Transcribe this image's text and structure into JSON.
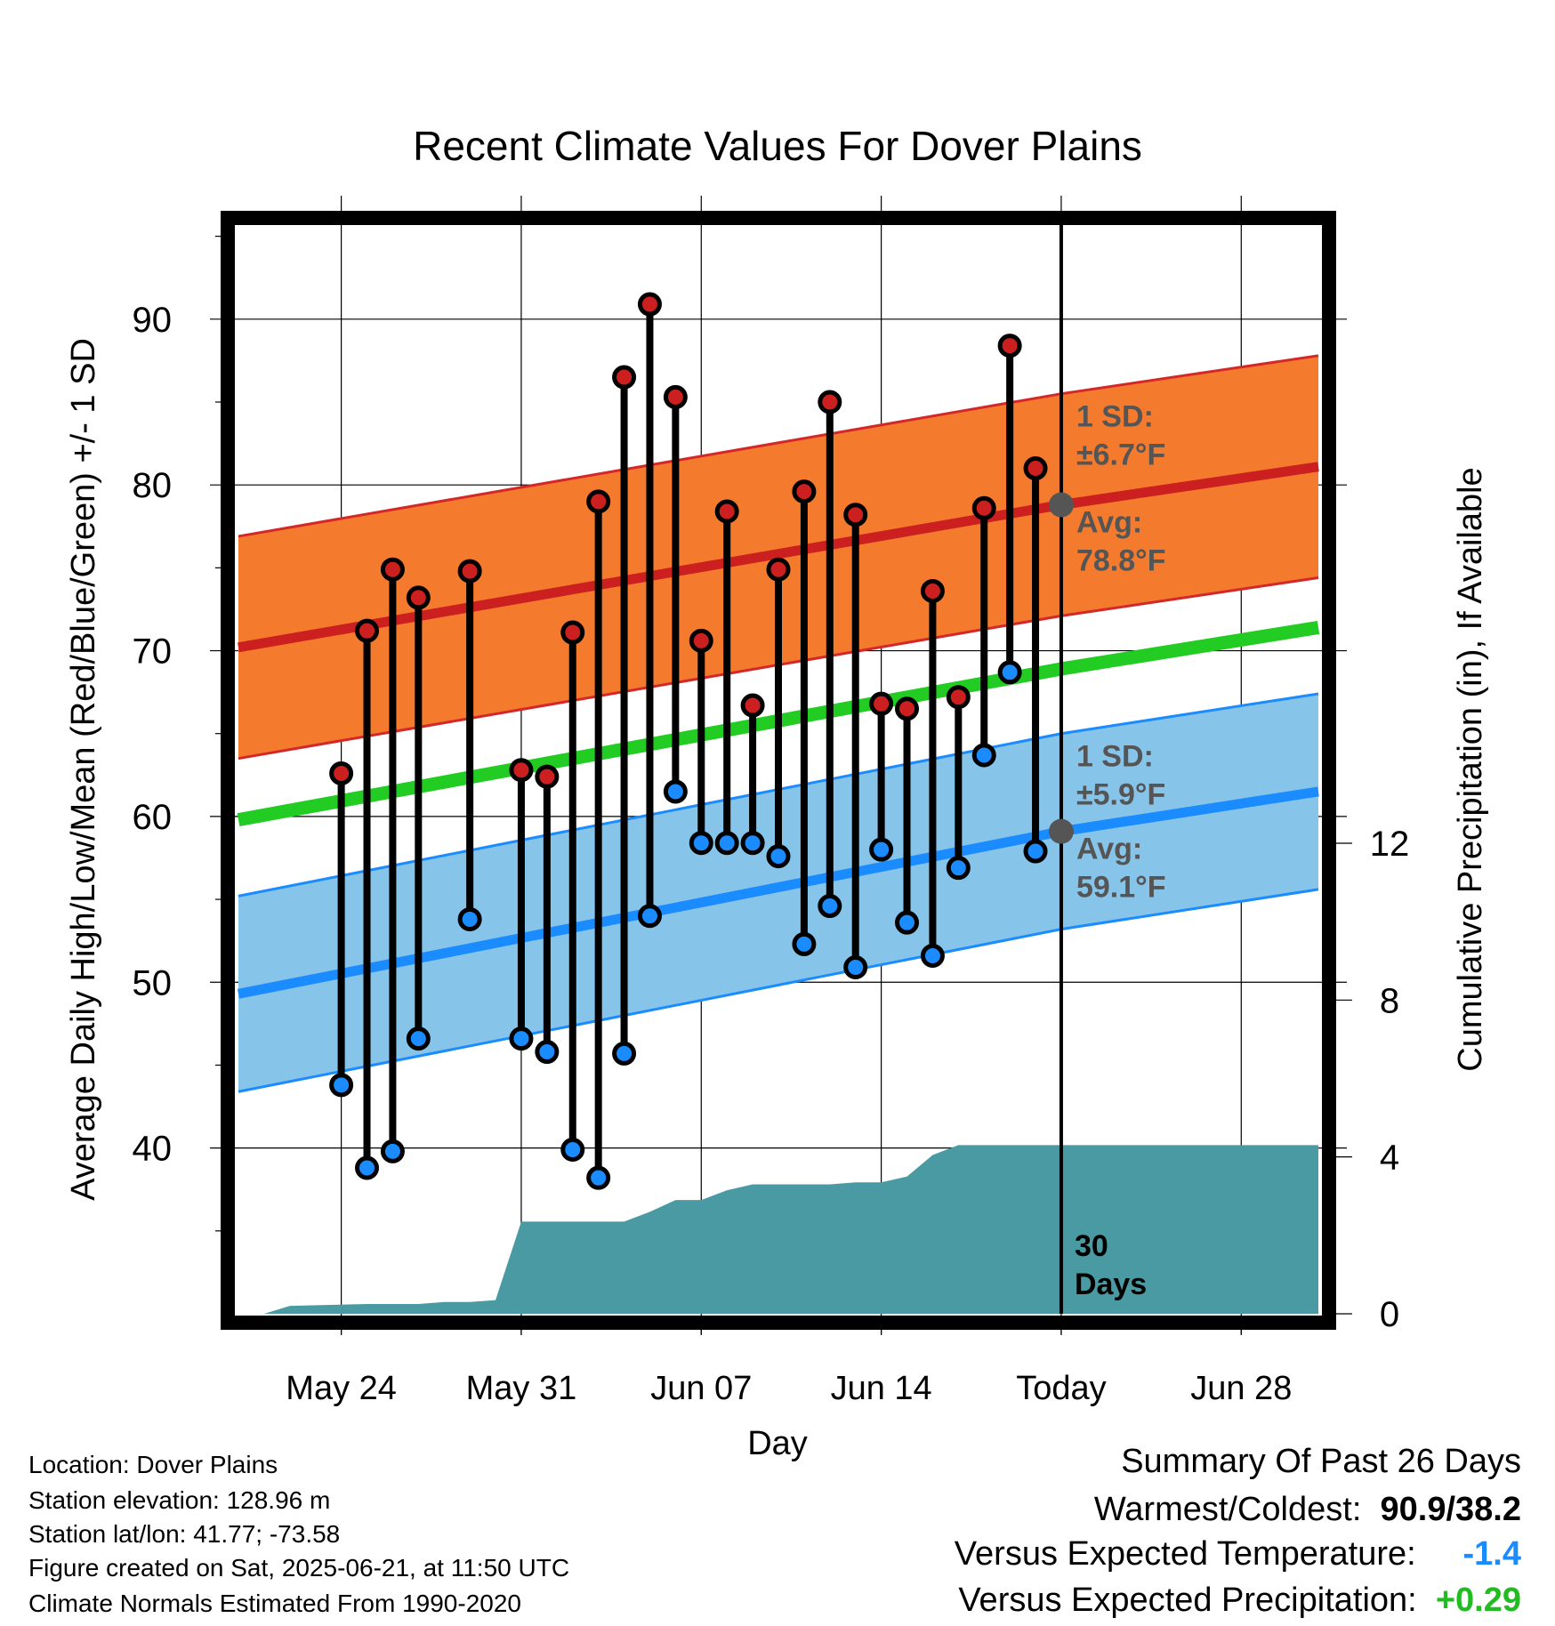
{
  "chart_data": {
    "type": "line",
    "title": "Recent Climate Values For Dover Plains",
    "xlabel": "Day",
    "ylabel": "Average Daily High/Low/Mean (Red/Blue/Green) +/- 1 SD",
    "y2label": "Cumulative Precipitation (in), If Available",
    "xlim": [
      "2025-05-20",
      "2025-07-01"
    ],
    "ylim": [
      30,
      96
    ],
    "y2lim": [
      0,
      27.9
    ],
    "x_ticks": [
      {
        "date": "2025-05-24",
        "label": "May 24"
      },
      {
        "date": "2025-05-31",
        "label": "May 31"
      },
      {
        "date": "2025-06-07",
        "label": "Jun 07"
      },
      {
        "date": "2025-06-14",
        "label": "Jun 14"
      },
      {
        "date": "2025-06-21",
        "label": "Today"
      },
      {
        "date": "2025-06-28",
        "label": "Jun 28"
      }
    ],
    "y_ticks": [
      40,
      50,
      60,
      70,
      80,
      90
    ],
    "y2_ticks": [
      0,
      4,
      8,
      12
    ],
    "grid": true,
    "normals": {
      "dates": [
        "2025-05-20",
        "2025-06-21",
        "2025-07-01"
      ],
      "high_avg": [
        70.2,
        78.8,
        81.1
      ],
      "high_sd": 6.7,
      "low_avg": [
        49.3,
        59.1,
        61.5
      ],
      "low_sd": 5.9,
      "mean_avg": [
        59.8,
        68.9,
        71.4
      ]
    },
    "daily": {
      "dates": [
        "2025-05-24",
        "2025-05-25",
        "2025-05-26",
        "2025-05-27",
        "2025-05-29",
        "2025-05-31",
        "2025-06-01",
        "2025-06-02",
        "2025-06-03",
        "2025-06-04",
        "2025-06-05",
        "2025-06-06",
        "2025-06-07",
        "2025-06-08",
        "2025-06-09",
        "2025-06-10",
        "2025-06-11",
        "2025-06-12",
        "2025-06-13",
        "2025-06-14",
        "2025-06-15",
        "2025-06-16",
        "2025-06-17",
        "2025-06-18",
        "2025-06-19",
        "2025-06-20"
      ],
      "high": [
        62.6,
        71.2,
        74.9,
        73.2,
        74.8,
        62.8,
        62.4,
        71.1,
        79.0,
        86.5,
        90.9,
        85.3,
        70.6,
        78.4,
        66.7,
        74.9,
        79.6,
        85.0,
        78.2,
        66.8,
        66.5,
        73.6,
        67.2,
        78.6,
        88.4,
        81.0
      ],
      "low": [
        43.8,
        38.8,
        39.8,
        46.6,
        53.8,
        46.6,
        45.8,
        39.9,
        38.2,
        45.7,
        54.0,
        61.5,
        58.4,
        58.4,
        58.4,
        57.6,
        52.3,
        54.6,
        50.9,
        58.0,
        53.6,
        51.6,
        56.9,
        63.7,
        68.7,
        57.9
      ]
    },
    "precip_cumulative": {
      "dates": [
        "2025-05-20",
        "2025-05-21",
        "2025-05-22",
        "2025-05-25",
        "2025-05-27",
        "2025-05-28",
        "2025-05-29",
        "2025-05-30",
        "2025-05-31",
        "2025-06-04",
        "2025-06-05",
        "2025-06-06",
        "2025-06-07",
        "2025-06-08",
        "2025-06-09",
        "2025-06-10",
        "2025-06-11",
        "2025-06-12",
        "2025-06-13",
        "2025-06-14",
        "2025-06-15",
        "2025-06-16",
        "2025-06-17",
        "2025-06-18",
        "2025-07-01"
      ],
      "values": [
        0.0,
        0.0,
        0.2,
        0.25,
        0.25,
        0.3,
        0.3,
        0.35,
        2.35,
        2.35,
        2.6,
        2.9,
        2.9,
        3.15,
        3.3,
        3.3,
        3.3,
        3.3,
        3.35,
        3.35,
        3.5,
        4.05,
        4.3,
        4.3,
        4.3
      ]
    },
    "annotations": {
      "high_sd_label": [
        "1 SD:",
        "±6.7°F"
      ],
      "high_avg_label": [
        "Avg:",
        "78.8°F"
      ],
      "low_sd_label": [
        "1 SD:",
        "±5.9°F"
      ],
      "low_avg_label": [
        "Avg:",
        "59.1°F"
      ],
      "window_label": [
        "30",
        "Days"
      ]
    },
    "colors": {
      "high": "#cc2020",
      "high_band": "#f47a2e",
      "high_band_edge": "#d42828",
      "mean": "#22cc22",
      "low": "#1a8cff",
      "low_band": "#87c4ea",
      "low_band_edge": "#1a8cff",
      "precip": "#4a9aa4",
      "annotation": "#555555"
    }
  },
  "footer": {
    "location": "Location: Dover Plains",
    "elevation": "Station elevation: 128.96 m",
    "latlon": "Station lat/lon: 41.77; -73.58",
    "created": "Figure created on Sat, 2025-06-21, at 11:50 UTC",
    "normals": "Climate Normals Estimated From 1990-2020"
  },
  "summary": {
    "title": "Summary Of Past 26 Days",
    "warmest_coldest_label": "Warmest/Coldest:",
    "warmest_coldest_value": "90.9/38.2",
    "temp_label": "Versus Expected Temperature:",
    "temp_value": "-1.4",
    "temp_value_color": "#1a8cff",
    "precip_label": "Versus Expected Precipitation:",
    "precip_value": "+0.29",
    "precip_value_color": "#22bb22"
  }
}
